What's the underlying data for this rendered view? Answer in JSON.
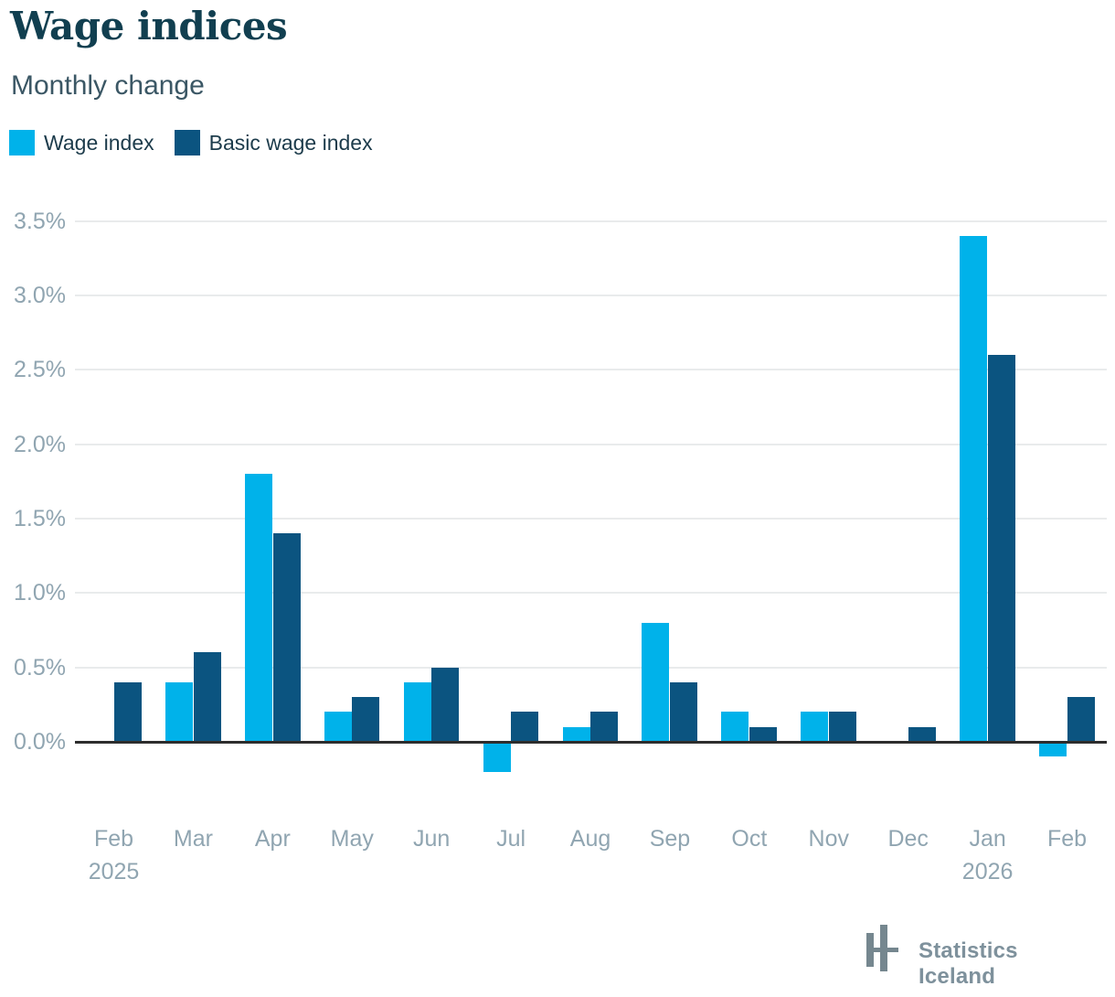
{
  "header": {
    "title": "Wage indices",
    "subtitle": "Monthly change"
  },
  "footer": {
    "brand": "Statistics Iceland"
  },
  "colors": {
    "wage_index": "#00b2ea",
    "basic_wage_index": "#0b5480",
    "title_text": "#113f50",
    "axis_label_text": "#90a5b1",
    "gridline": "#e9ebec",
    "zero_axis": "#2d2d2d",
    "logo_gray": "#75878f"
  },
  "icons": {
    "logo": "statistics-iceland-bars-icon"
  },
  "chart_data": {
    "type": "bar",
    "title": "Wage indices",
    "subtitle": "Monthly change",
    "unit": "%",
    "grid": "horizontal",
    "legend_position": "top-left",
    "ylim": [
      -0.3,
      3.5
    ],
    "categories": [
      {
        "month": "Feb",
        "year": "2025"
      },
      {
        "month": "Mar"
      },
      {
        "month": "Apr"
      },
      {
        "month": "May"
      },
      {
        "month": "Jun"
      },
      {
        "month": "Jul"
      },
      {
        "month": "Aug"
      },
      {
        "month": "Sep"
      },
      {
        "month": "Oct"
      },
      {
        "month": "Nov"
      },
      {
        "month": "Dec"
      },
      {
        "month": "Jan",
        "year": "2026"
      },
      {
        "month": "Feb"
      }
    ],
    "series": [
      {
        "name": "Wage index",
        "color": "#00b2ea",
        "values": [
          0.0,
          0.4,
          1.8,
          0.2,
          0.4,
          -0.2,
          0.1,
          0.8,
          0.2,
          0.2,
          0.0,
          3.4,
          -0.1
        ]
      },
      {
        "name": "Basic wage index",
        "color": "#0b5480",
        "values": [
          0.4,
          0.6,
          1.4,
          0.3,
          0.5,
          0.2,
          0.2,
          0.4,
          0.1,
          0.2,
          0.1,
          2.6,
          0.3
        ]
      }
    ],
    "y_ticks": [
      {
        "value": 3.5,
        "label": "3.5%"
      },
      {
        "value": 3.0,
        "label": "3.0%"
      },
      {
        "value": 2.5,
        "label": "2.5%"
      },
      {
        "value": 2.0,
        "label": "2.0%"
      },
      {
        "value": 1.5,
        "label": "1.5%"
      },
      {
        "value": 1.0,
        "label": "1.0%"
      },
      {
        "value": 0.5,
        "label": "0.5%"
      },
      {
        "value": 0.0,
        "label": "0.0%"
      }
    ]
  }
}
